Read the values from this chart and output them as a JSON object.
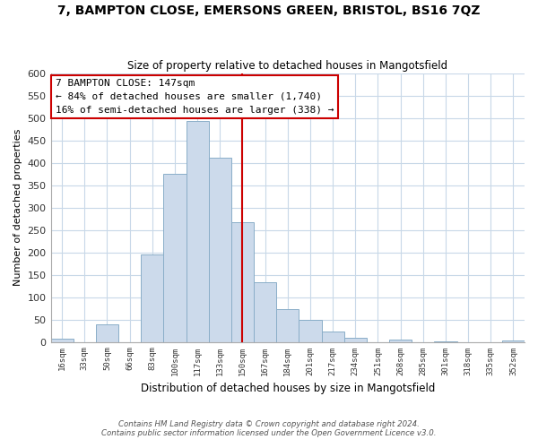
{
  "title": "7, BAMPTON CLOSE, EMERSONS GREEN, BRISTOL, BS16 7QZ",
  "subtitle": "Size of property relative to detached houses in Mangotsfield",
  "xlabel": "Distribution of detached houses by size in Mangotsfield",
  "ylabel": "Number of detached properties",
  "bar_labels": [
    "16sqm",
    "33sqm",
    "50sqm",
    "66sqm",
    "83sqm",
    "100sqm",
    "117sqm",
    "133sqm",
    "150sqm",
    "167sqm",
    "184sqm",
    "201sqm",
    "217sqm",
    "234sqm",
    "251sqm",
    "268sqm",
    "285sqm",
    "301sqm",
    "318sqm",
    "335sqm",
    "352sqm"
  ],
  "bar_values": [
    8,
    0,
    40,
    0,
    195,
    375,
    493,
    412,
    268,
    133,
    73,
    50,
    23,
    10,
    0,
    5,
    0,
    2,
    0,
    0,
    3
  ],
  "bar_color": "#ccdaeb",
  "bar_edge_color": "#8aaec8",
  "vline_color": "#cc0000",
  "annotation_title": "7 BAMPTON CLOSE: 147sqm",
  "annotation_line1": "← 84% of detached houses are smaller (1,740)",
  "annotation_line2": "16% of semi-detached houses are larger (338) →",
  "annotation_box_color": "#ffffff",
  "annotation_box_edge": "#cc0000",
  "ylim": [
    0,
    600
  ],
  "yticks": [
    0,
    50,
    100,
    150,
    200,
    250,
    300,
    350,
    400,
    450,
    500,
    550,
    600
  ],
  "footnote1": "Contains HM Land Registry data © Crown copyright and database right 2024.",
  "footnote2": "Contains public sector information licensed under the Open Government Licence v3.0.",
  "bg_color": "#ffffff",
  "grid_color": "#c8d8e8"
}
